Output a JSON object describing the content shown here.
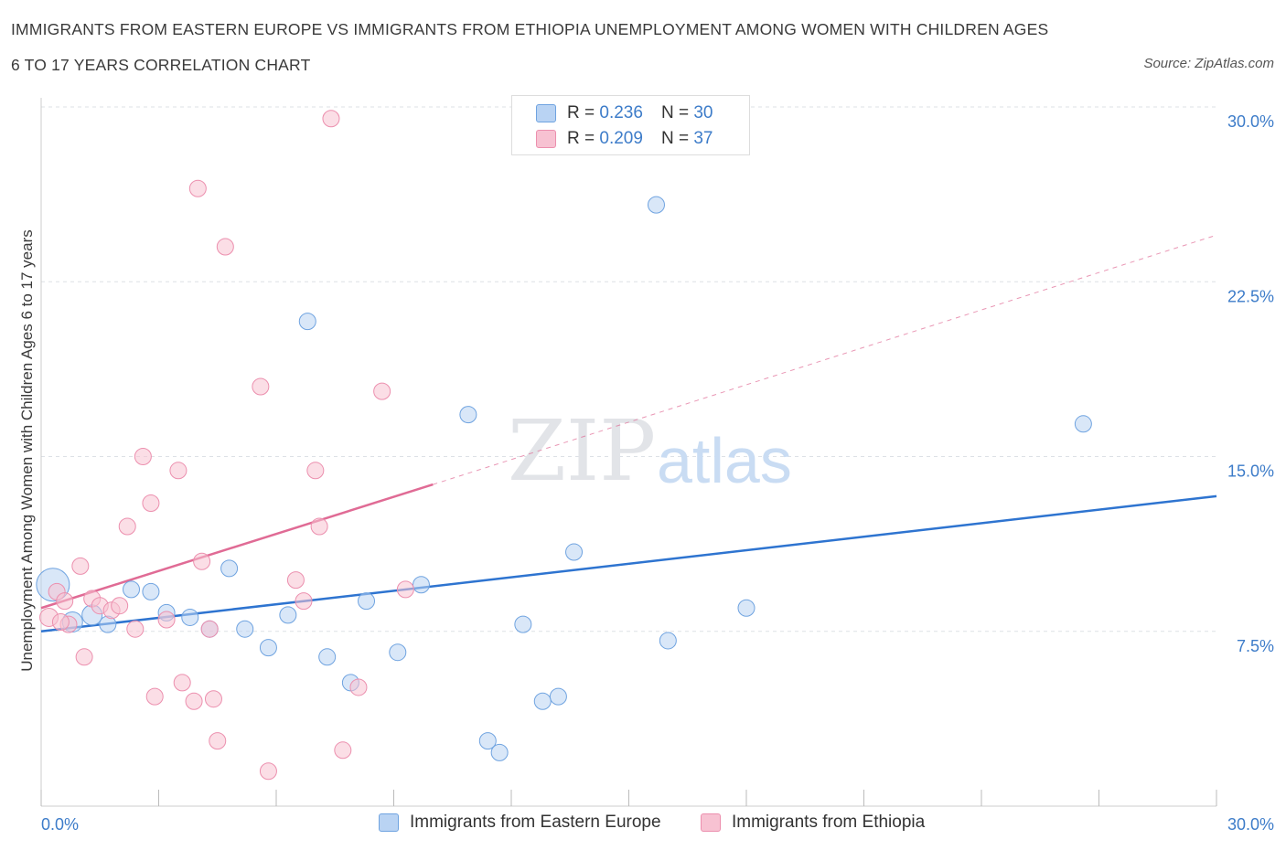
{
  "header": {
    "title_line1": "IMMIGRANTS FROM EASTERN EUROPE VS IMMIGRANTS FROM ETHIOPIA UNEMPLOYMENT AMONG WOMEN WITH CHILDREN AGES",
    "title_line2": "6 TO 17 YEARS CORRELATION CHART",
    "source": "Source: ZipAtlas.com"
  },
  "legend": {
    "series1": {
      "r_label": "R =",
      "r_value": "0.236",
      "n_label": "N =",
      "n_value": "30"
    },
    "series2": {
      "r_label": "R =",
      "r_value": "0.209",
      "n_label": "N =",
      "n_value": "37"
    }
  },
  "watermark": {
    "zip": "ZIP",
    "atlas": "atlas"
  },
  "colors": {
    "blue_fill": "#b9d3f3",
    "blue_stroke": "#6fa3e0",
    "blue_line": "#2e74d0",
    "pink_fill": "#f7c2d2",
    "pink_stroke": "#ec8fae",
    "pink_line": "#e06b95",
    "grid": "#dde1e6",
    "tick_text": "#3d7cc9"
  },
  "chart_data": {
    "type": "scatter",
    "title": "IMMIGRANTS FROM EASTERN EUROPE VS IMMIGRANTS FROM ETHIOPIA UNEMPLOYMENT AMONG WOMEN WITH CHILDREN AGES 6 TO 17 YEARS CORRELATION CHART",
    "ylabel": "Unemployment Among Women with Children Ages 6 to 17 years",
    "xlabel": "",
    "xlim": [
      0,
      30
    ],
    "ylim": [
      0,
      30
    ],
    "x_tick_labels": [
      "0.0%",
      "30.0%"
    ],
    "y_ticks": [
      7.5,
      15.0,
      22.5,
      30.0
    ],
    "y_tick_labels": [
      "7.5%",
      "15.0%",
      "22.5%",
      "30.0%"
    ],
    "grid": true,
    "legend_position": "top-center",
    "series": [
      {
        "name": "Immigrants from Eastern Europe",
        "color": "#6fa3e0",
        "points": [
          [
            0.3,
            9.5,
            18
          ],
          [
            0.8,
            7.9,
            11
          ],
          [
            1.3,
            8.2,
            11
          ],
          [
            1.7,
            7.8,
            9
          ],
          [
            2.3,
            9.3,
            9
          ],
          [
            2.8,
            9.2,
            9
          ],
          [
            3.2,
            8.3,
            9
          ],
          [
            3.8,
            8.1,
            9
          ],
          [
            4.3,
            7.6,
            9
          ],
          [
            4.8,
            10.2,
            9
          ],
          [
            5.2,
            7.6,
            9
          ],
          [
            5.8,
            6.8,
            9
          ],
          [
            6.3,
            8.2,
            9
          ],
          [
            6.8,
            20.8,
            9
          ],
          [
            7.3,
            6.4,
            9
          ],
          [
            7.9,
            5.3,
            9
          ],
          [
            8.3,
            8.8,
            9
          ],
          [
            9.1,
            6.6,
            9
          ],
          [
            9.7,
            9.5,
            9
          ],
          [
            10.9,
            16.8,
            9
          ],
          [
            11.4,
            2.8,
            9
          ],
          [
            11.7,
            2.3,
            9
          ],
          [
            12.3,
            7.8,
            9
          ],
          [
            12.8,
            4.5,
            9
          ],
          [
            13.2,
            4.7,
            9
          ],
          [
            13.6,
            10.9,
            9
          ],
          [
            15.7,
            25.8,
            9
          ],
          [
            16.0,
            7.1,
            9
          ],
          [
            18.0,
            8.5,
            9
          ],
          [
            26.6,
            16.4,
            9
          ]
        ],
        "trend": {
          "x0": 0,
          "y0": 7.5,
          "x1": 30,
          "y1": 13.3,
          "style": "solid"
        }
      },
      {
        "name": "Immigrants from Ethiopia",
        "color": "#ec8fae",
        "points": [
          [
            0.2,
            8.1,
            10
          ],
          [
            0.4,
            9.2,
            9
          ],
          [
            0.6,
            8.8,
            9
          ],
          [
            0.7,
            7.8,
            9
          ],
          [
            1.0,
            10.3,
            9
          ],
          [
            1.1,
            6.4,
            9
          ],
          [
            1.3,
            8.9,
            9
          ],
          [
            1.5,
            8.6,
            9
          ],
          [
            1.8,
            8.4,
            9
          ],
          [
            2.0,
            8.6,
            9
          ],
          [
            2.2,
            12.0,
            9
          ],
          [
            2.4,
            7.6,
            9
          ],
          [
            2.6,
            15.0,
            9
          ],
          [
            2.8,
            13.0,
            9
          ],
          [
            2.9,
            4.7,
            9
          ],
          [
            3.2,
            8.0,
            9
          ],
          [
            3.5,
            14.4,
            9
          ],
          [
            3.6,
            5.3,
            9
          ],
          [
            3.9,
            4.5,
            9
          ],
          [
            4.0,
            26.5,
            9
          ],
          [
            4.1,
            10.5,
            9
          ],
          [
            4.3,
            7.6,
            9
          ],
          [
            4.4,
            4.6,
            9
          ],
          [
            4.5,
            2.8,
            9
          ],
          [
            4.7,
            24.0,
            9
          ],
          [
            5.6,
            18.0,
            9
          ],
          [
            5.8,
            1.5,
            9
          ],
          [
            6.5,
            9.7,
            9
          ],
          [
            6.7,
            8.8,
            9
          ],
          [
            7.0,
            14.4,
            9
          ],
          [
            7.1,
            12.0,
            9
          ],
          [
            7.4,
            29.5,
            9
          ],
          [
            7.7,
            2.4,
            9
          ],
          [
            8.1,
            5.1,
            9
          ],
          [
            8.7,
            17.8,
            9
          ],
          [
            9.3,
            9.3,
            9
          ],
          [
            0.5,
            7.9,
            9
          ]
        ],
        "trend": {
          "x0": 0,
          "y0": 8.5,
          "x1": 10.0,
          "y1": 13.8,
          "style": "solid"
        },
        "trend_extension": {
          "x0": 10.0,
          "y0": 13.8,
          "x1": 30,
          "y1": 24.5,
          "style": "dashed"
        }
      }
    ]
  }
}
